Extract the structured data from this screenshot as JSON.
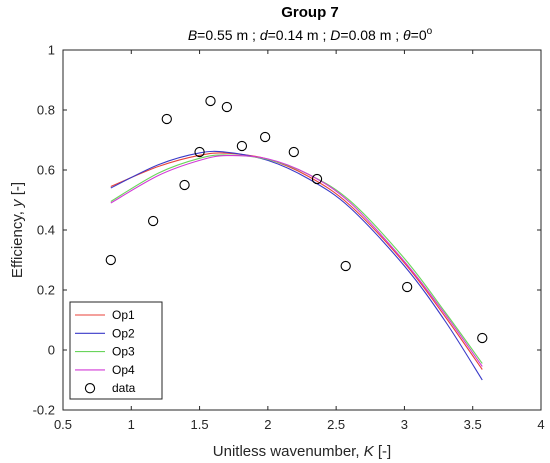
{
  "chart_data": {
    "type": "line",
    "title": "Group 7",
    "subtitle": {
      "B_symbol": "B",
      "B_value": "=0.55 m ; ",
      "d_symbol": "d",
      "d_value": "=0.14 m ; ",
      "D_symbol": "D",
      "D_value": "=0.08 m ; ",
      "theta_symbol": "θ",
      "theta_value": "=0",
      "degree": "o"
    },
    "xlabel": {
      "text": "Unitless wavenumber, ",
      "symbol": "K",
      "unit": " [-]"
    },
    "ylabel": {
      "text": "Efficiency, ",
      "symbol": "y",
      "unit": " [-]"
    },
    "xlim": [
      0.5,
      4
    ],
    "ylim": [
      -0.2,
      1
    ],
    "xticks": [
      "0.5",
      "1",
      "1.5",
      "2",
      "2.5",
      "3",
      "3.5",
      "4"
    ],
    "yticks": [
      "-0.2",
      "0",
      "0.2",
      "0.4",
      "0.6",
      "0.8",
      "1"
    ],
    "grid": false,
    "legend_position": "bottom-left",
    "series": [
      {
        "name": "Op1",
        "color": "#e8413a",
        "x": [
          0.85,
          1.2,
          1.5,
          1.7,
          2.0,
          2.3,
          2.6,
          3.0,
          3.3,
          3.57
        ],
        "y": [
          0.545,
          0.612,
          0.649,
          0.656,
          0.636,
          0.578,
          0.483,
          0.29,
          0.11,
          -0.065
        ]
      },
      {
        "name": "Op2",
        "color": "#3a3ac8",
        "x": [
          0.85,
          1.2,
          1.5,
          1.7,
          2.0,
          2.3,
          2.6,
          3.0,
          3.3,
          3.57
        ],
        "y": [
          0.54,
          0.618,
          0.657,
          0.659,
          0.632,
          0.57,
          0.475,
          0.28,
          0.095,
          -0.1
        ]
      },
      {
        "name": "Op3",
        "color": "#6ad45c",
        "x": [
          0.85,
          1.2,
          1.5,
          1.7,
          2.0,
          2.3,
          2.6,
          3.0,
          3.3,
          3.57
        ],
        "y": [
          0.495,
          0.59,
          0.639,
          0.65,
          0.635,
          0.585,
          0.498,
          0.305,
          0.125,
          -0.045
        ]
      },
      {
        "name": "Op4",
        "color": "#d23ad6",
        "x": [
          0.85,
          1.2,
          1.5,
          1.7,
          2.0,
          2.3,
          2.6,
          3.0,
          3.3,
          3.57
        ],
        "y": [
          0.49,
          0.582,
          0.632,
          0.648,
          0.637,
          0.585,
          0.492,
          0.295,
          0.118,
          -0.055
        ]
      }
    ],
    "data_series": {
      "name": "data",
      "marker": "circle",
      "x": [
        0.85,
        1.16,
        1.26,
        1.39,
        1.5,
        1.58,
        1.7,
        1.81,
        1.98,
        2.19,
        2.36,
        2.57,
        3.02,
        3.57
      ],
      "y": [
        0.3,
        0.43,
        0.77,
        0.55,
        0.66,
        0.83,
        0.81,
        0.68,
        0.71,
        0.66,
        0.57,
        0.28,
        0.21,
        0.04
      ]
    }
  }
}
